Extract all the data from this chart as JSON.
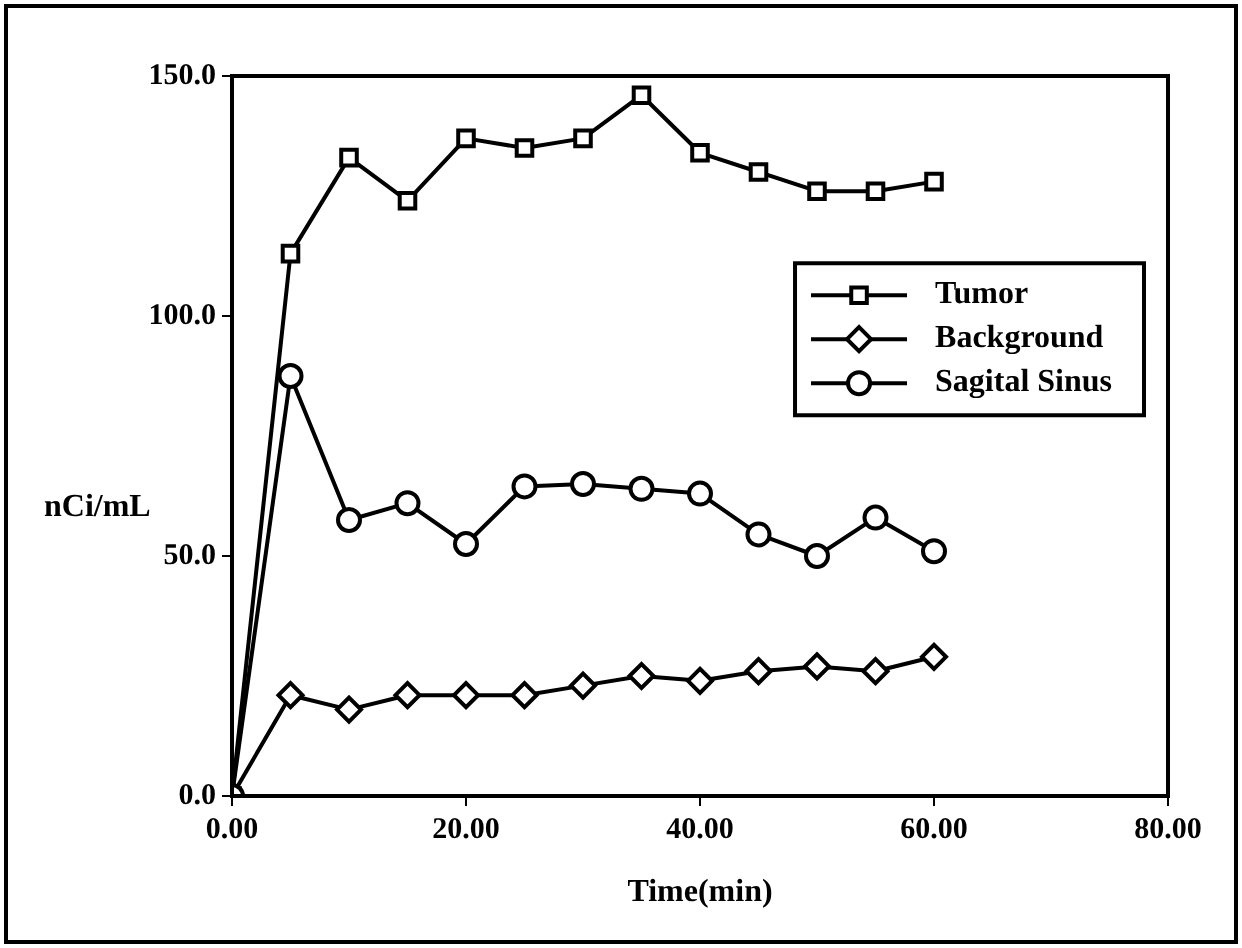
{
  "chart_data": {
    "type": "line",
    "xlabel": "Time(min)",
    "ylabel": "nCi/mL",
    "x": [
      0,
      5,
      10,
      15,
      20,
      25,
      30,
      35,
      40,
      45,
      50,
      55,
      60
    ],
    "series": [
      {
        "name": "Tumor",
        "color": "#000000",
        "marker": "square",
        "values": [
          0,
          113,
          133,
          124,
          137,
          135,
          137,
          146,
          134,
          130,
          126,
          126,
          128
        ]
      },
      {
        "name": "Background",
        "color": "#000000",
        "marker": "diamond",
        "values": [
          0,
          21,
          18,
          21,
          21,
          21,
          23,
          25,
          24,
          26,
          27,
          26,
          29
        ]
      },
      {
        "name": "Sagital Sinus",
        "color": "#000000",
        "marker": "circle",
        "values": [
          0,
          87.5,
          57.5,
          61,
          52.5,
          64.5,
          65,
          64,
          63,
          54.5,
          50,
          58,
          51
        ]
      }
    ],
    "xlim": [
      0,
      80
    ],
    "xticks": [
      {
        "value": 0,
        "label": "0.00"
      },
      {
        "value": 20,
        "label": "20.00"
      },
      {
        "value": 40,
        "label": "40.00"
      },
      {
        "value": 60,
        "label": "60.00"
      },
      {
        "value": 80,
        "label": "80.00"
      }
    ],
    "ylim": [
      0,
      150
    ],
    "yticks": [
      {
        "value": 0,
        "label": "0.0"
      },
      {
        "value": 50,
        "label": "50.0"
      },
      {
        "value": 100,
        "label": "100.0"
      },
      {
        "value": 150,
        "label": "150.0"
      }
    ],
    "grid": false,
    "legend": "right",
    "line_style": "solid"
  }
}
